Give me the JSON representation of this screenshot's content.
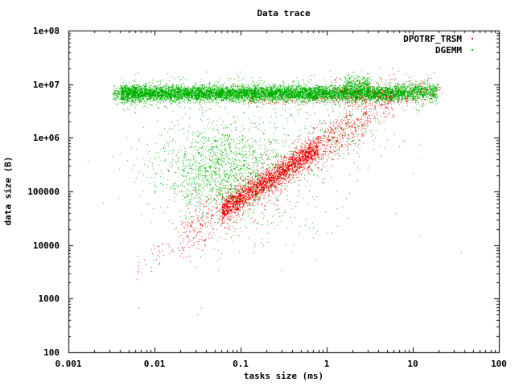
{
  "chart_data": {
    "type": "scatter",
    "title": "Data trace",
    "xlabel": "tasks size (ms)",
    "ylabel": "data size (B)",
    "x_scale": "log",
    "y_scale": "log",
    "xlim": [
      0.001,
      100
    ],
    "ylim": [
      100,
      100000000
    ],
    "grid": false,
    "legend_position": "top-right-inside",
    "x_ticks": [
      {
        "v": 0.001,
        "label": "0.001"
      },
      {
        "v": 0.01,
        "label": "0.01"
      },
      {
        "v": 0.1,
        "label": "0.1"
      },
      {
        "v": 1,
        "label": "1"
      },
      {
        "v": 10,
        "label": "10"
      },
      {
        "v": 100,
        "label": "100"
      }
    ],
    "y_ticks": [
      {
        "v": 100,
        "label": "100"
      },
      {
        "v": 1000,
        "label": "1000"
      },
      {
        "v": 10000,
        "label": "10000"
      },
      {
        "v": 100000,
        "label": "100000"
      },
      {
        "v": 1000000,
        "label": "1e+06"
      },
      {
        "v": 10000000,
        "label": "1e+07"
      },
      {
        "v": 100000000,
        "label": "1e+08"
      }
    ],
    "legend": [
      {
        "name": "DPOTRF_TRSM",
        "colors": [
          "#ff0000",
          "#cc0000"
        ]
      },
      {
        "name": "DGEMM",
        "colors": [
          "#00b800",
          "#00a800"
        ]
      }
    ],
    "series": [
      {
        "name": "DGEMM",
        "colors": [
          "#00b800",
          "#00a800"
        ],
        "marker": "dot",
        "clusters": [
          {
            "type": "band",
            "x0": 0.004,
            "x1": 8,
            "cy": 6800000,
            "sy": 0.07,
            "n": 8000
          },
          {
            "type": "band",
            "x0": 8,
            "x1": 19,
            "cy": 7200000,
            "sy": 0.085,
            "n": 550
          },
          {
            "type": "band",
            "x0": 0.0032,
            "x1": 0.006,
            "cy": 6500000,
            "sy": 0.09,
            "n": 200
          },
          {
            "type": "band",
            "x0": 0.004,
            "x1": 20,
            "cy": 7000000,
            "sy": 0.17,
            "n": 550
          },
          {
            "type": "band",
            "x0": 1.6,
            "x1": 3.2,
            "cy": 10200000,
            "sy": 0.08,
            "n": 260
          },
          {
            "type": "cloud",
            "cx": 0.06,
            "cy": 250000,
            "sx": 0.4,
            "sy": 0.46,
            "n": 1500
          },
          {
            "type": "cloud",
            "cx": 0.15,
            "cy": 400000,
            "sx": 0.75,
            "sy": 0.75,
            "n": 260
          },
          {
            "type": "cloud",
            "cx": 1.3,
            "cy": 1300000,
            "sx": 0.32,
            "sy": 0.3,
            "n": 160
          },
          {
            "type": "cloud",
            "cx": 0.3,
            "cy": 20000,
            "sx": 0.45,
            "sy": 0.35,
            "n": 36
          }
        ],
        "extra_points": [
          {
            "x": 0.035,
            "y": 700
          }
        ]
      },
      {
        "name": "DPOTRF_TRSM",
        "colors": [
          "#ff0000",
          "#cc0000"
        ],
        "marker": "dot",
        "clusters": [
          {
            "type": "diag",
            "x0": 0.06,
            "x1": 0.8,
            "a": 5.93,
            "b": 1.05,
            "sy": 0.11,
            "n": 2100
          },
          {
            "type": "diag",
            "x0": 0.02,
            "x1": 3,
            "a": 5.93,
            "b": 1.05,
            "sy": 0.28,
            "n": 750
          },
          {
            "type": "diag",
            "x0": 0.8,
            "x1": 6,
            "a": 5.93,
            "b": 1.05,
            "sy": 0.18,
            "n": 300
          },
          {
            "type": "diag",
            "x0": 0.006,
            "x1": 0.06,
            "a": 5.93,
            "b": 1.05,
            "sy": 0.18,
            "n": 85
          },
          {
            "type": "band",
            "x0": 0.12,
            "x1": 12,
            "cy": 5100000,
            "sy": 0.05,
            "n": 130
          },
          {
            "type": "band",
            "x0": 1.2,
            "x1": 22,
            "cy": 8000000,
            "sy": 0.13,
            "n": 150
          }
        ],
        "extra_points": [
          {
            "x": 0.0065,
            "y": 700
          }
        ]
      }
    ]
  }
}
